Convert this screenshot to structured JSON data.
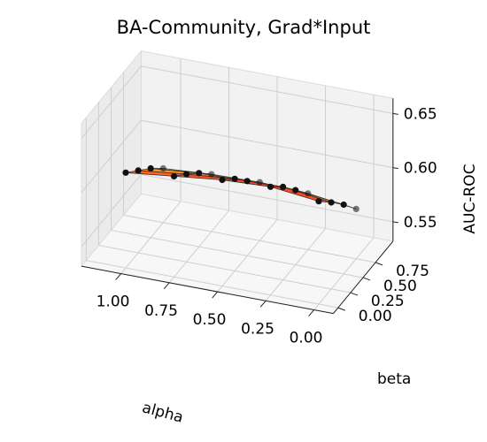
{
  "chart_data": {
    "type": "surface3d",
    "title": "BA-Community, Grad*Input",
    "xlabel": "alpha",
    "ylabel": "beta",
    "zlabel": "AUC-ROC",
    "alpha": [
      1.0,
      0.75,
      0.5,
      0.25,
      0.0
    ],
    "beta": [
      0.0,
      0.25,
      0.5,
      0.75
    ],
    "z": [
      [
        0.62,
        0.608,
        0.596,
        0.582
      ],
      [
        0.625,
        0.613,
        0.6,
        0.585
      ],
      [
        0.63,
        0.617,
        0.601,
        0.586
      ],
      [
        0.632,
        0.618,
        0.601,
        0.584
      ],
      [
        0.627,
        0.612,
        0.596,
        0.578
      ]
    ],
    "colormap": "autumn_r",
    "x_ticks": [
      "1.00",
      "0.75",
      "0.50",
      "0.25",
      "0.00"
    ],
    "y_ticks": [
      "0.00",
      "0.25",
      "0.50",
      "0.75"
    ],
    "z_ticks": [
      "0.55",
      "0.60",
      "0.65"
    ],
    "zlim": [
      0.55,
      0.65
    ],
    "grid": true
  }
}
